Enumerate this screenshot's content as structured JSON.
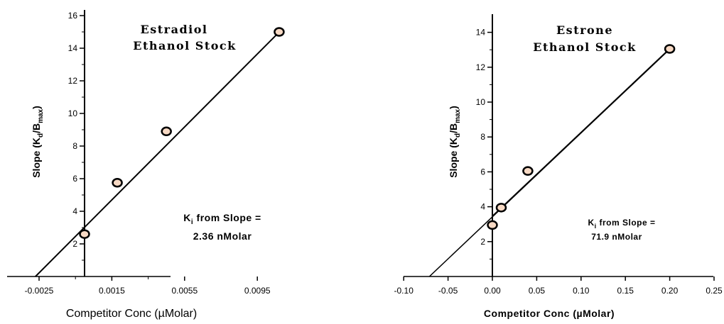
{
  "chart_data": [
    {
      "type": "scatter",
      "title_lines": [
        "Estradiol",
        "Ethanol Stock"
      ],
      "xlabel": "Competitor Conc (µMolar)",
      "ylabel": {
        "pre": "Slope (K",
        "sub1": "d",
        "mid": "/B",
        "sub2": "max",
        "post": ")"
      },
      "xlim": [
        -0.0035,
        0.0125
      ],
      "ylim": [
        0,
        16.5
      ],
      "x_ticks": [
        -0.0025,
        0.0015,
        0.0055,
        0.0095
      ],
      "x_tick_labels": [
        "-0.0025",
        "0.0015",
        "0.0055",
        "0.0095"
      ],
      "y_ticks": [
        2,
        4,
        6,
        8,
        10,
        12,
        14,
        16
      ],
      "y_tick_labels": [
        "2",
        "4",
        "6",
        "8",
        "10",
        "12",
        "14",
        "16"
      ],
      "points": [
        {
          "x": 0,
          "y": 2.6
        },
        {
          "x": 0.0018,
          "y": 5.75
        },
        {
          "x": 0.0045,
          "y": 8.9
        },
        {
          "x": 0.0107,
          "y": 15
        }
      ],
      "fit_line": {
        "x0": -0.0027,
        "y0": 0,
        "x1": 0.0108,
        "y1": 15.1
      },
      "annotation": {
        "line1_pre": "K",
        "line1_sub": "i",
        "line1_post": " from Slope =",
        "line2": "2.36 nMolar"
      },
      "marker_color": "#f7d9c4"
    },
    {
      "type": "scatter",
      "title_lines": [
        "Estrone",
        "Ethanol Stock"
      ],
      "xlabel": "Competitor Conc (µMolar)",
      "ylabel": {
        "pre": "Slope (K",
        "sub1": "d",
        "mid": "/B",
        "sub2": "max",
        "post": ")"
      },
      "xlim": [
        -0.1,
        0.25
      ],
      "ylim": [
        0,
        15
      ],
      "x_ticks": [
        -0.1,
        -0.05,
        0,
        0.05,
        0.1,
        0.15,
        0.2,
        0.25
      ],
      "x_tick_labels": [
        "-0.10",
        "-0.05",
        "0.00",
        "0.05",
        "0.10",
        "0.15",
        "0.20",
        "0.25"
      ],
      "y_ticks": [
        2,
        4,
        6,
        8,
        10,
        12,
        14
      ],
      "y_tick_labels": [
        "2",
        "4",
        "6",
        "8",
        "10",
        "12",
        "14"
      ],
      "points": [
        {
          "x": 0,
          "y": 2.95
        },
        {
          "x": 0.01,
          "y": 3.95
        },
        {
          "x": 0.04,
          "y": 6.05
        },
        {
          "x": 0.2,
          "y": 13.05
        }
      ],
      "fit_line": {
        "x0": -0.071,
        "y0": 0,
        "x1": 0.2,
        "y1": 13.05
      },
      "annotation": {
        "line1_pre": "K",
        "line1_sub": "i",
        "line1_post": " from Slope =",
        "line2": "71.9 nMolar"
      },
      "marker_color": "#f7d9c4"
    }
  ]
}
